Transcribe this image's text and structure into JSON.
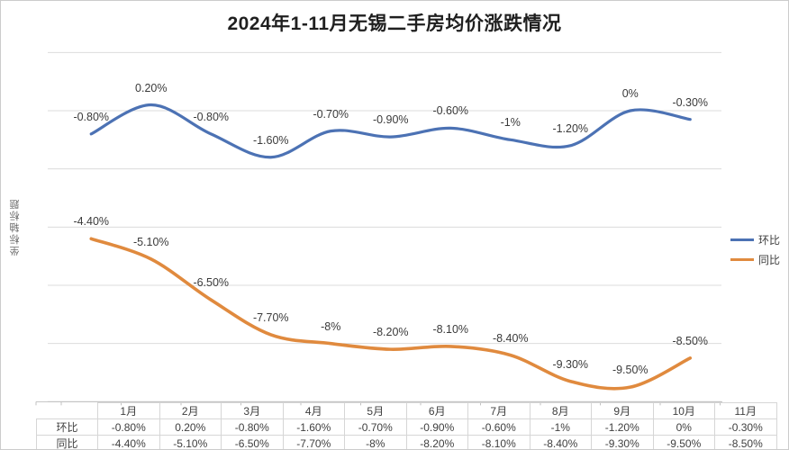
{
  "title": "2024年1-11月无锡二手房均价涨跌情况",
  "y_axis_title": "坐标轴标题",
  "legend": {
    "items": [
      {
        "label": "环比",
        "color": "#4c72b4"
      },
      {
        "label": "同比",
        "color": "#e08a3e"
      }
    ]
  },
  "chart_data": {
    "type": "line",
    "title": "2024年1-11月无锡二手房均价涨跌情况",
    "categories": [
      "1月",
      "2月",
      "3月",
      "4月",
      "5月",
      "6月",
      "7月",
      "8月",
      "9月",
      "10月",
      "11月"
    ],
    "series": [
      {
        "name": "环比",
        "color": "#4c72b4",
        "values": [
          -0.8,
          0.2,
          -0.8,
          -1.6,
          -0.7,
          -0.9,
          -0.6,
          -1.0,
          -1.2,
          0.0,
          -0.3
        ],
        "labels": [
          "-0.80%",
          "0.20%",
          "-0.80%",
          "-1.60%",
          "-0.70%",
          "-0.90%",
          "-0.60%",
          "-1%",
          "-1.20%",
          "0%",
          "-0.30%"
        ]
      },
      {
        "name": "同比",
        "color": "#e08a3e",
        "values": [
          -4.4,
          -5.1,
          -6.5,
          -7.7,
          -8.0,
          -8.2,
          -8.1,
          -8.4,
          -9.3,
          -9.5,
          -8.5
        ],
        "labels": [
          "-4.40%",
          "-5.10%",
          "-6.50%",
          "-7.70%",
          "-8%",
          "-8.20%",
          "-8.10%",
          "-8.40%",
          "-9.30%",
          "-9.50%",
          "-8.50%"
        ]
      }
    ],
    "xlabel": "",
    "ylabel": "坐标轴标题",
    "ylim": [
      -10,
      2
    ],
    "gridline_step": 2,
    "grid": true,
    "smooth": true,
    "legend_position": "right",
    "gridline_color": "#dcdcdc",
    "axis_color": "#c2c2c2"
  },
  "table": {
    "corner": "",
    "columns": [
      "1月",
      "2月",
      "3月",
      "4月",
      "5月",
      "6月",
      "7月",
      "8月",
      "9月",
      "10月",
      "11月"
    ],
    "rows": [
      {
        "label": "环比",
        "values": [
          "-0.80%",
          "0.20%",
          "-0.80%",
          "-1.60%",
          "-0.70%",
          "-0.90%",
          "-0.60%",
          "-1%",
          "-1.20%",
          "0%",
          "-0.30%"
        ]
      },
      {
        "label": "同比",
        "values": [
          "-4.40%",
          "-5.10%",
          "-6.50%",
          "-7.70%",
          "-8%",
          "-8.20%",
          "-8.10%",
          "-8.40%",
          "-9.30%",
          "-9.50%",
          "-8.50%"
        ]
      }
    ]
  }
}
